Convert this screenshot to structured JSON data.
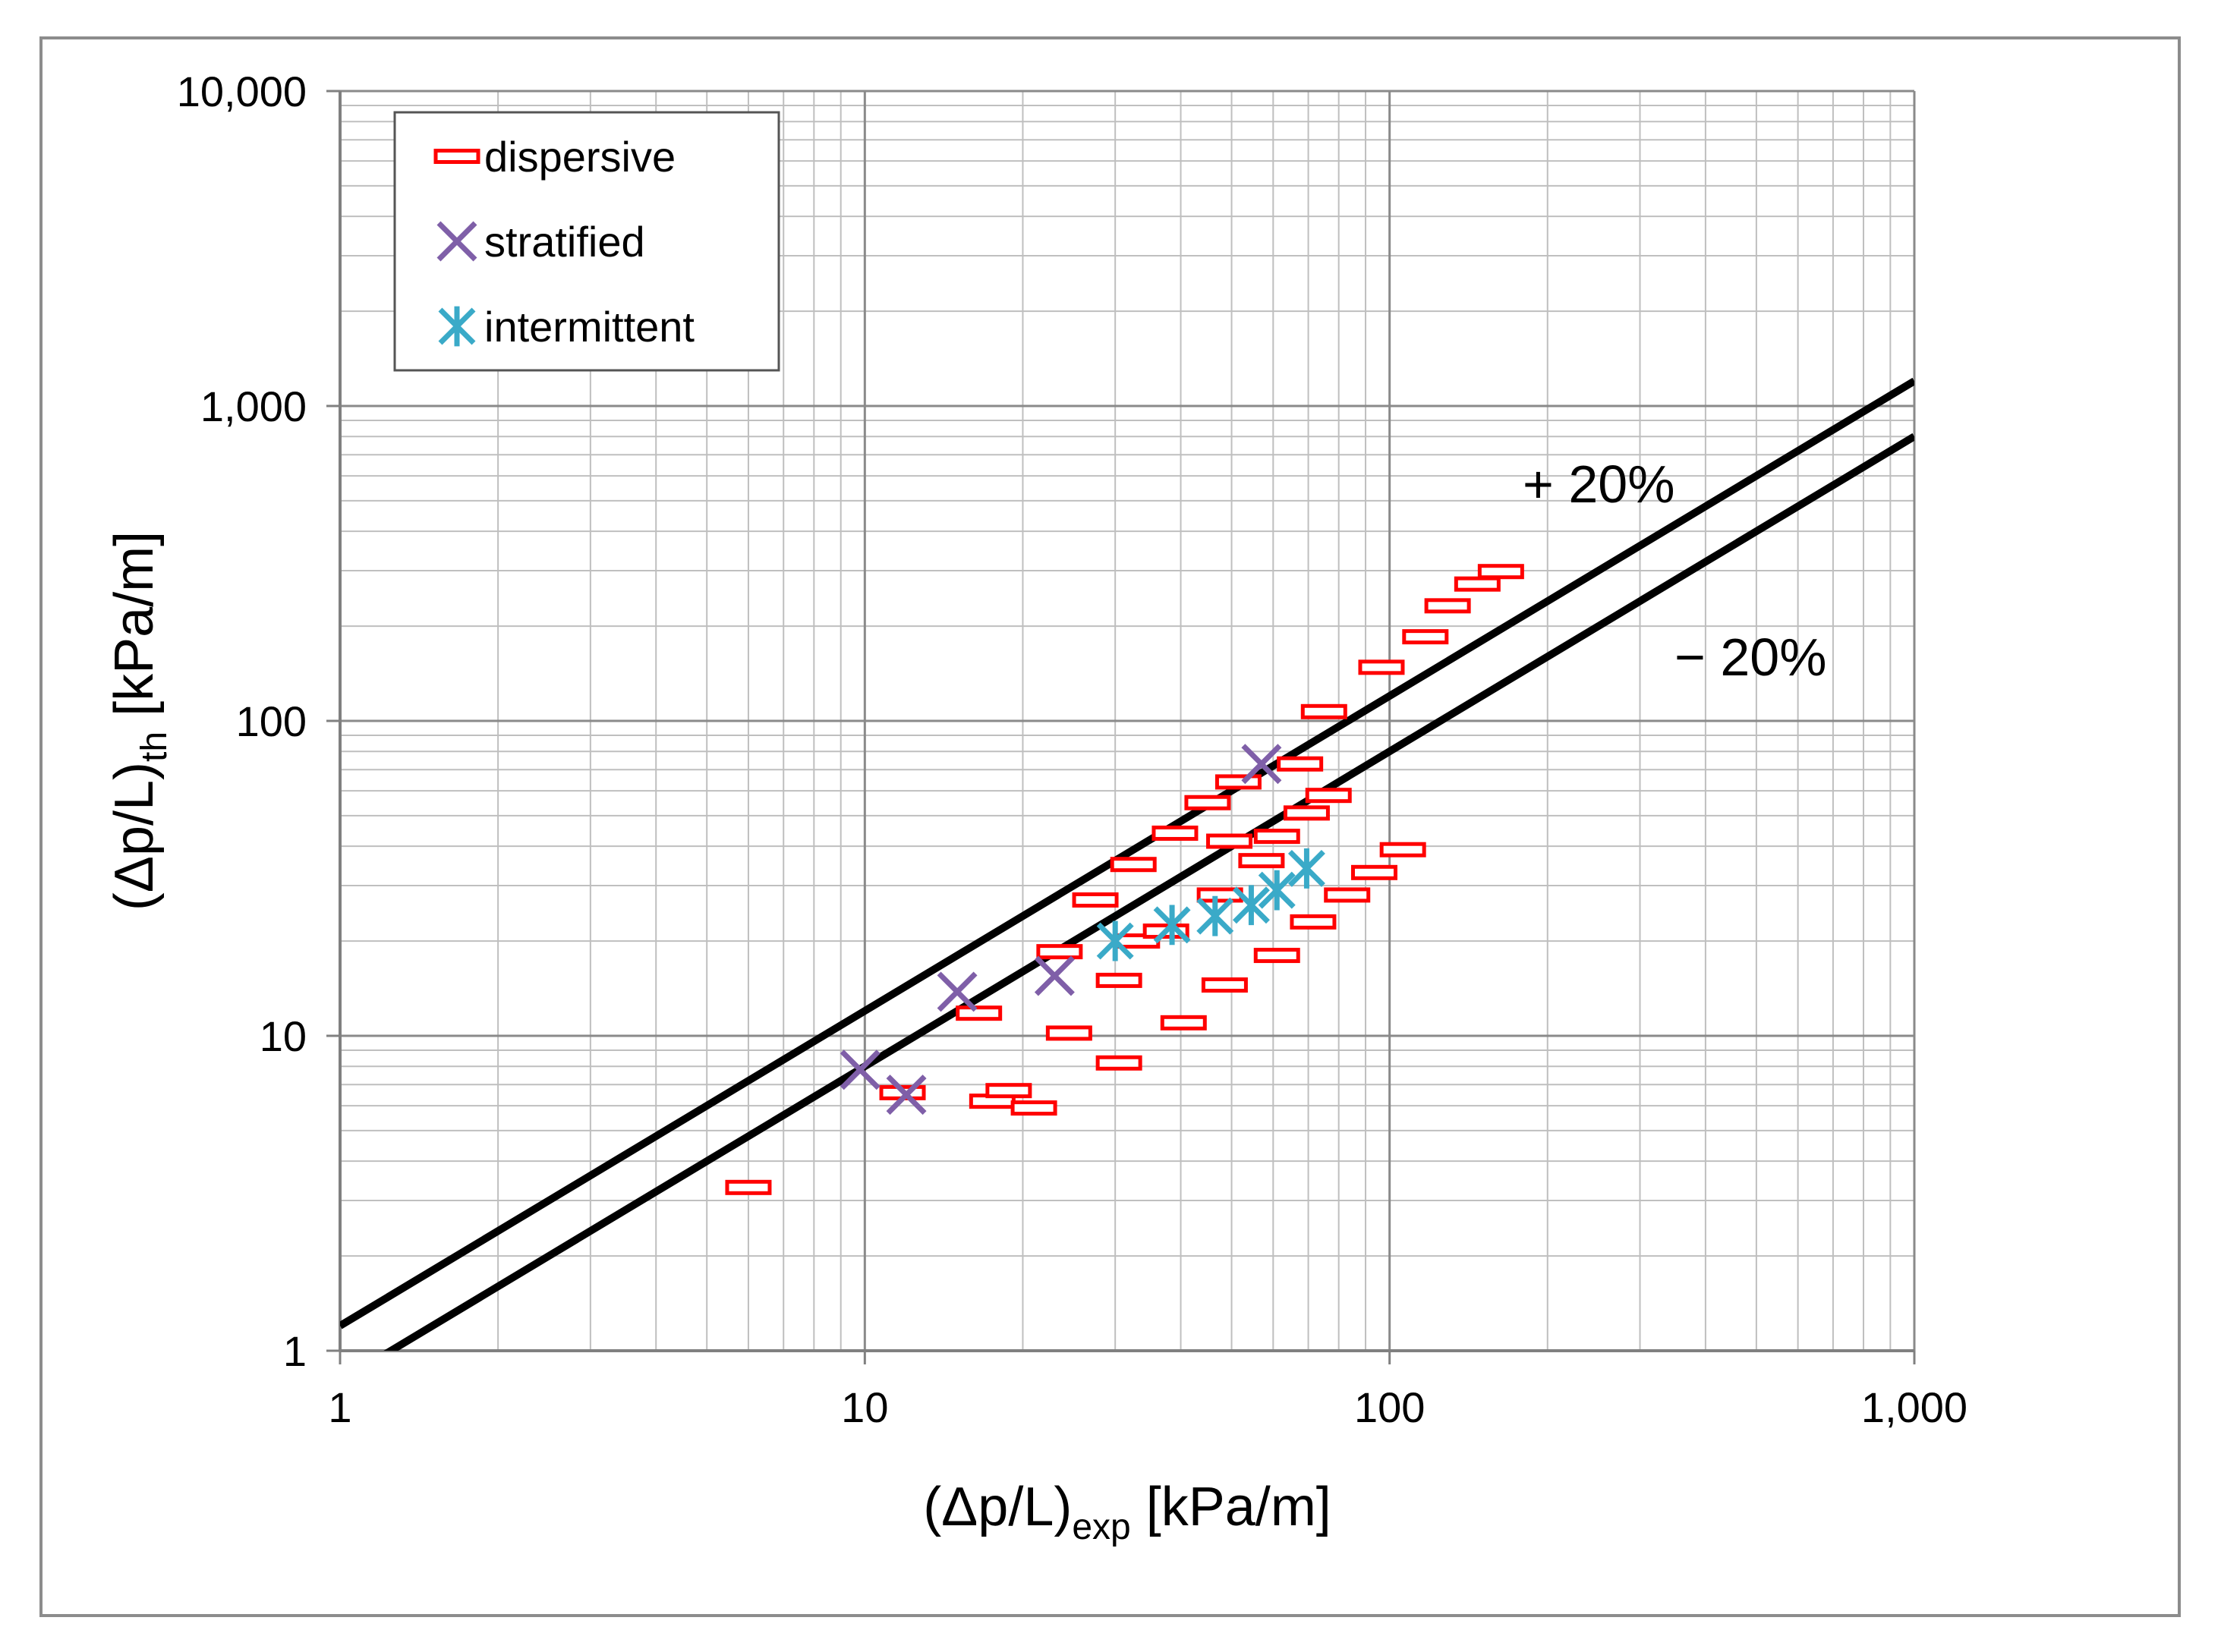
{
  "chart_data": {
    "type": "scatter",
    "xscale": "log",
    "yscale": "log",
    "xlim": [
      1,
      1000
    ],
    "ylim": [
      1,
      10000
    ],
    "grid": true,
    "legend_position": "top-left",
    "xlabel": {
      "main": "(Δp/L)",
      "sub": "exp",
      "unit": " [kPa/m]"
    },
    "ylabel": {
      "main": "(Δp/L)",
      "sub": "th",
      "unit": " [kPa/m]"
    },
    "x_ticks": [
      {
        "value": 1,
        "label": "1"
      },
      {
        "value": 10,
        "label": "10"
      },
      {
        "value": 100,
        "label": "100"
      },
      {
        "value": 1000,
        "label": "1,000"
      }
    ],
    "y_ticks": [
      {
        "value": 1,
        "label": "1"
      },
      {
        "value": 10,
        "label": "10"
      },
      {
        "value": 100,
        "label": "100"
      },
      {
        "value": 1000,
        "label": "1,000"
      },
      {
        "value": 10000,
        "label": "10,000"
      }
    ],
    "reference_lines": [
      {
        "label": "+ 20%",
        "factor": 1.2,
        "color": "#000000"
      },
      {
        "label": "− 20%",
        "factor": 0.8,
        "color": "#000000"
      }
    ],
    "series": [
      {
        "name": "dispersive",
        "marker": "dash",
        "color": "#ff0000",
        "points": [
          [
            6.0,
            3.3
          ],
          [
            11.8,
            6.6
          ],
          [
            17.5,
            6.2
          ],
          [
            18.8,
            6.7
          ],
          [
            21.0,
            5.9
          ],
          [
            16.5,
            11.8
          ],
          [
            23.5,
            18.5
          ],
          [
            24.5,
            10.2
          ],
          [
            27.5,
            27.0
          ],
          [
            30.5,
            8.2
          ],
          [
            30.5,
            15.0
          ],
          [
            33.0,
            20.0
          ],
          [
            32.5,
            35.0
          ],
          [
            37.5,
            21.5
          ],
          [
            40.5,
            11.0
          ],
          [
            39.0,
            44.0
          ],
          [
            45.0,
            55.0
          ],
          [
            47.5,
            28.0
          ],
          [
            48.5,
            14.5
          ],
          [
            49.5,
            41.5
          ],
          [
            51.5,
            64.0
          ],
          [
            57.0,
            36.0
          ],
          [
            61.0,
            43.0
          ],
          [
            61.0,
            18.0
          ],
          [
            67.5,
            73.0
          ],
          [
            69.5,
            51.0
          ],
          [
            71.5,
            23.0
          ],
          [
            76.5,
            58.0
          ],
          [
            75.0,
            107.0
          ],
          [
            83.0,
            28.0
          ],
          [
            93.5,
            33.0
          ],
          [
            96.5,
            148.0
          ],
          [
            106.0,
            39.0
          ],
          [
            117.0,
            185.0
          ],
          [
            129.0,
            232.0
          ],
          [
            147.0,
            272.0
          ],
          [
            163.0,
            298.0
          ]
        ]
      },
      {
        "name": "stratified",
        "marker": "x",
        "color": "#7f5fa8",
        "points": [
          [
            9.8,
            7.8
          ],
          [
            12.0,
            6.5
          ],
          [
            15.0,
            13.8
          ],
          [
            23.0,
            15.5
          ],
          [
            57.0,
            73.0
          ]
        ]
      },
      {
        "name": "intermittent",
        "marker": "asterisk",
        "color": "#3aaac8",
        "points": [
          [
            30.0,
            20.0
          ],
          [
            38.5,
            22.5
          ],
          [
            46.5,
            24.0
          ],
          [
            54.5,
            26.0
          ],
          [
            61.0,
            29.0
          ],
          [
            69.5,
            34.0
          ]
        ]
      }
    ]
  }
}
